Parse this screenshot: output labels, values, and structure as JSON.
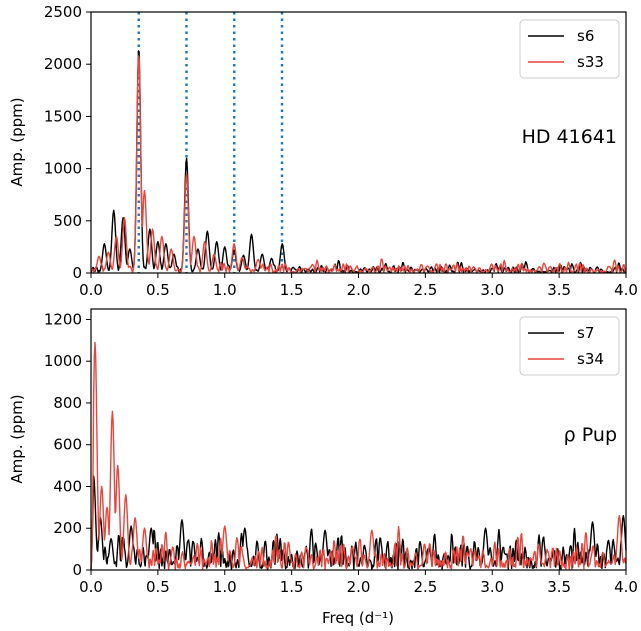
{
  "chart_data": [
    {
      "type": "line",
      "annotation": "HD 41641",
      "xlabel": "",
      "ylabel": "Amp. (ppm)",
      "xlim": [
        0,
        4
      ],
      "ylim": [
        0,
        2500
      ],
      "xticks": [
        "0.0",
        "0.5",
        "1.0",
        "1.5",
        "2.0",
        "2.5",
        "3.0",
        "3.5",
        "4.0"
      ],
      "yticks": [
        "0",
        "500",
        "1000",
        "1500",
        "2000",
        "2500"
      ],
      "legend_position": "top-right",
      "vlines": [
        0.357,
        0.714,
        1.071,
        1.428
      ],
      "vline_color": "#1f77b4",
      "series": [
        {
          "name": "s6",
          "color": "#000000",
          "noise_level": 55,
          "peaks": [
            [
              0.1,
              280
            ],
            [
              0.17,
              600
            ],
            [
              0.24,
              530
            ],
            [
              0.29,
              230
            ],
            [
              0.357,
              2150
            ],
            [
              0.44,
              420
            ],
            [
              0.5,
              300
            ],
            [
              0.56,
              280
            ],
            [
              0.62,
              180
            ],
            [
              0.714,
              1100
            ],
            [
              0.8,
              230
            ],
            [
              0.87,
              400
            ],
            [
              0.94,
              300
            ],
            [
              1.0,
              250
            ],
            [
              1.07,
              220
            ],
            [
              1.14,
              170
            ],
            [
              1.2,
              370
            ],
            [
              1.28,
              180
            ],
            [
              1.35,
              140
            ],
            [
              1.43,
              280
            ]
          ]
        },
        {
          "name": "s33",
          "color": "#e8453c",
          "noise_level": 65,
          "peaks": [
            [
              0.06,
              160
            ],
            [
              0.13,
              200
            ],
            [
              0.19,
              350
            ],
            [
              0.25,
              530
            ],
            [
              0.357,
              2100
            ],
            [
              0.4,
              790
            ],
            [
              0.46,
              420
            ],
            [
              0.53,
              350
            ],
            [
              0.6,
              230
            ],
            [
              0.714,
              950
            ],
            [
              0.77,
              350
            ],
            [
              0.85,
              300
            ],
            [
              0.92,
              180
            ],
            [
              1.07,
              280
            ],
            [
              1.13,
              150
            ],
            [
              1.25,
              130
            ]
          ]
        }
      ]
    },
    {
      "type": "line",
      "annotation": "ρ Pup",
      "xlabel": "Freq (d⁻¹)",
      "ylabel": "Amp. (ppm)",
      "xlim": [
        0,
        4
      ],
      "ylim": [
        0,
        1250
      ],
      "xticks": [
        "0.0",
        "0.5",
        "1.0",
        "1.5",
        "2.0",
        "2.5",
        "3.0",
        "3.5",
        "4.0"
      ],
      "yticks": [
        "0",
        "200",
        "400",
        "600",
        "800",
        "1000",
        "1200"
      ],
      "legend_position": "top-right",
      "series": [
        {
          "name": "s7",
          "color": "#000000",
          "noise_level": 110,
          "peaks": [
            [
              0.02,
              450
            ],
            [
              0.07,
              250
            ],
            [
              0.15,
              150
            ],
            [
              0.3,
              210
            ],
            [
              0.45,
              200
            ],
            [
              0.68,
              240
            ],
            [
              1.15,
              200
            ],
            [
              1.75,
              190
            ],
            [
              2.95,
              200
            ],
            [
              3.75,
              230
            ],
            [
              3.98,
              260
            ]
          ]
        },
        {
          "name": "s34",
          "color": "#e8453c",
          "noise_level": 95,
          "peaks": [
            [
              0.03,
              1090
            ],
            [
              0.08,
              400
            ],
            [
              0.12,
              300
            ],
            [
              0.16,
              760
            ],
            [
              0.2,
              500
            ],
            [
              0.26,
              360
            ],
            [
              0.33,
              250
            ],
            [
              0.4,
              200
            ],
            [
              1.0,
              210
            ],
            [
              2.1,
              190
            ],
            [
              3.95,
              260
            ]
          ]
        }
      ]
    }
  ]
}
